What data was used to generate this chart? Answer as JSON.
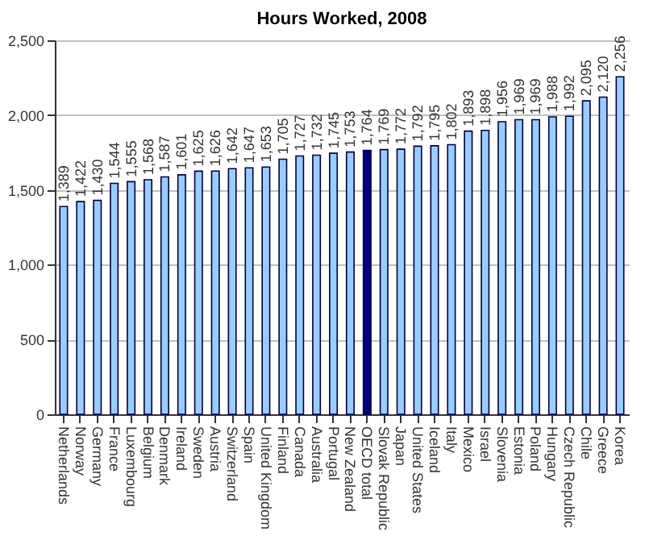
{
  "chart_data": {
    "type": "bar",
    "title": "Hours Worked, 2008",
    "categories": [
      "Netherlands",
      "Norway",
      "Germany",
      "France",
      "Luxembourg",
      "Belgium",
      "Denmark",
      "Ireland",
      "Sweden",
      "Austria",
      "Switzerland",
      "Spain",
      "United Kingdom",
      "Finland",
      "Canada",
      "Australia",
      "Portugal",
      "New Zealand",
      "OECD total",
      "Slovak Republic",
      "Japan",
      "United States",
      "Iceland",
      "Italy",
      "Mexico",
      "Israel",
      "Slovenia",
      "Estonia",
      "Poland",
      "Hungary",
      "Czech Republic",
      "Chile",
      "Greece",
      "Korea"
    ],
    "values": [
      1389,
      1422,
      1430,
      1544,
      1555,
      1568,
      1587,
      1601,
      1625,
      1626,
      1642,
      1647,
      1653,
      1705,
      1727,
      1732,
      1745,
      1753,
      1764,
      1769,
      1772,
      1792,
      1795,
      1802,
      1893,
      1898,
      1956,
      1969,
      1969,
      1988,
      1992,
      2095,
      2120,
      2256
    ],
    "colors": [
      "#99ccff",
      "#99ccff",
      "#99ccff",
      "#99ccff",
      "#99ccff",
      "#99ccff",
      "#99ccff",
      "#99ccff",
      "#99ccff",
      "#99ccff",
      "#99ccff",
      "#99ccff",
      "#99ccff",
      "#99ccff",
      "#99ccff",
      "#99ccff",
      "#99ccff",
      "#99ccff",
      "#000080",
      "#99ccff",
      "#99ccff",
      "#99ccff",
      "#99ccff",
      "#99ccff",
      "#99ccff",
      "#99ccff",
      "#99ccff",
      "#99ccff",
      "#99ccff",
      "#99ccff",
      "#99ccff",
      "#99ccff",
      "#99ccff",
      "#99ccff"
    ],
    "value_labels": [
      "1,389",
      "1,422",
      "1,430",
      "1,544",
      "1,555",
      "1,568",
      "1,587",
      "1,601",
      "1,625",
      "1,626",
      "1,642",
      "1,647",
      "1,653",
      "1,705",
      "1,727",
      "1,732",
      "1,745",
      "1,753",
      "1,764",
      "1,769",
      "1,772",
      "1,792",
      "1,795",
      "1,802",
      "1,893",
      "1,898",
      "1,956",
      "1,969",
      "1,969",
      "1,988",
      "1,992",
      "2,095",
      "2,120",
      "2,256"
    ],
    "ylim": [
      0,
      2500
    ],
    "yticks": [
      {
        "value": 0,
        "label": "0"
      },
      {
        "value": 500,
        "label": "500"
      },
      {
        "value": 1000,
        "label": "1,000"
      },
      {
        "value": 1500,
        "label": "1,500"
      },
      {
        "value": 2000,
        "label": "2,000"
      },
      {
        "value": 2500,
        "label": "2,500"
      }
    ],
    "grid": "y"
  }
}
